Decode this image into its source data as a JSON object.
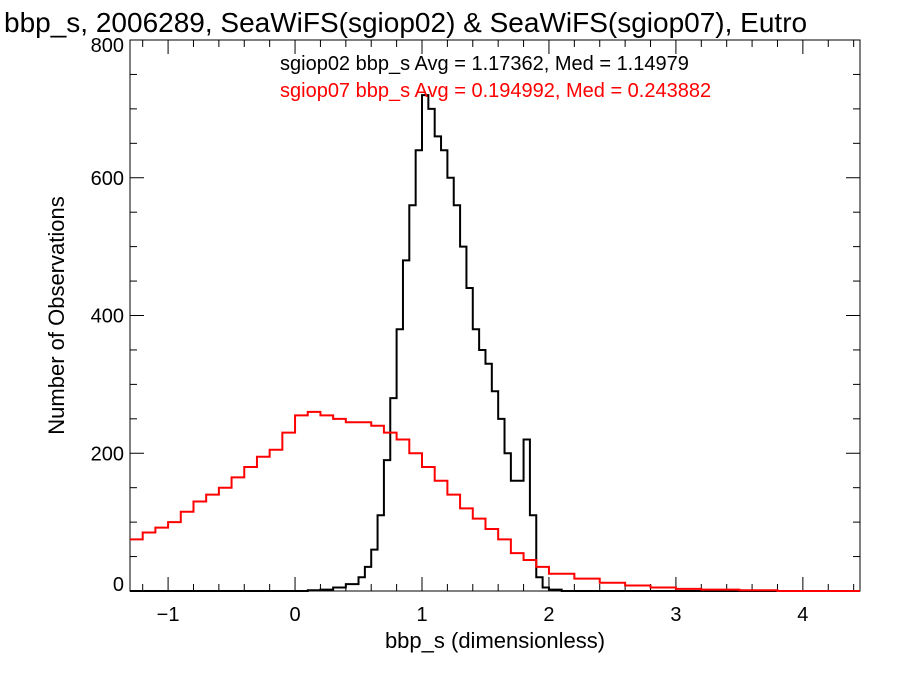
{
  "chart_data": {
    "type": "line",
    "title": "bbp_s, 2006289, SeaWiFS(sgiop02) & SeaWiFS(sgiop07), Eutro",
    "xlabel": "bbp_s (dimensionless)",
    "ylabel": "Number of Observations",
    "xlim": [
      -1.3,
      4.45
    ],
    "ylim": [
      0,
      800
    ],
    "x_ticks": [
      -1,
      0,
      1,
      2,
      3,
      4
    ],
    "y_ticks": [
      0,
      200,
      400,
      600,
      800
    ],
    "grid": false,
    "annotations": [
      {
        "text": "sgiop02 bbp_s Avg = 1.17362, Med = 1.14979",
        "color": "#000000"
      },
      {
        "text": "sgiop07 bbp_s Avg = 0.194992, Med = 0.243882",
        "color": "#ff0000"
      }
    ],
    "series": [
      {
        "color": "#000000",
        "x": [
          -1.3,
          0.0,
          0.1,
          0.2,
          0.3,
          0.4,
          0.5,
          0.55,
          0.6,
          0.65,
          0.7,
          0.75,
          0.8,
          0.85,
          0.9,
          0.95,
          1.0,
          1.05,
          1.1,
          1.15,
          1.2,
          1.25,
          1.3,
          1.35,
          1.4,
          1.45,
          1.5,
          1.55,
          1.6,
          1.65,
          1.7,
          1.75,
          1.8,
          1.85,
          1.9,
          1.95,
          2.0,
          2.1,
          4.45
        ],
        "y": [
          0,
          0,
          1,
          2,
          5,
          10,
          20,
          35,
          60,
          110,
          190,
          280,
          380,
          480,
          560,
          640,
          720,
          700,
          660,
          640,
          600,
          560,
          500,
          440,
          380,
          350,
          330,
          290,
          250,
          200,
          160,
          160,
          220,
          110,
          20,
          5,
          2,
          0,
          0
        ]
      },
      {
        "color": "#ff0000",
        "x": [
          -1.3,
          -1.2,
          -1.1,
          -1.0,
          -0.9,
          -0.8,
          -0.7,
          -0.6,
          -0.5,
          -0.4,
          -0.3,
          -0.2,
          -0.1,
          0.0,
          0.1,
          0.2,
          0.3,
          0.4,
          0.5,
          0.6,
          0.7,
          0.8,
          0.9,
          1.0,
          1.1,
          1.2,
          1.3,
          1.4,
          1.5,
          1.6,
          1.7,
          1.8,
          1.9,
          2.0,
          2.2,
          2.4,
          2.6,
          2.8,
          3.0,
          3.2,
          3.5,
          3.8,
          4.45
        ],
        "y": [
          75,
          85,
          92,
          100,
          115,
          130,
          140,
          150,
          165,
          180,
          195,
          205,
          230,
          255,
          260,
          255,
          250,
          245,
          245,
          240,
          230,
          220,
          200,
          180,
          160,
          140,
          120,
          105,
          90,
          75,
          55,
          45,
          35,
          25,
          18,
          12,
          8,
          5,
          3,
          2,
          1,
          0,
          0
        ]
      }
    ]
  }
}
